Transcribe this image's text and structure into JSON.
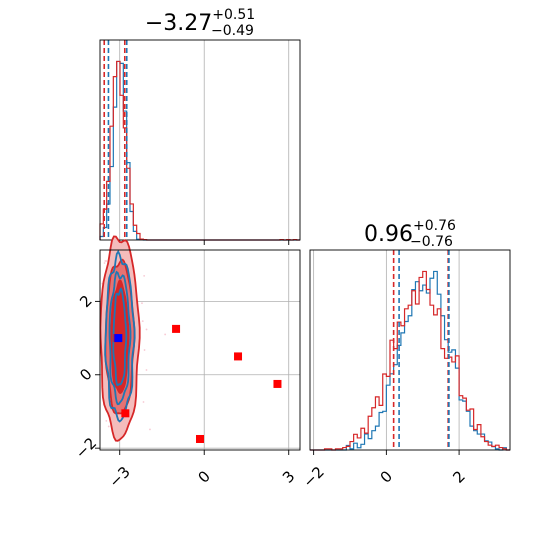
{
  "colors": {
    "blue": "#1f77b4",
    "red": "#d62728",
    "marker_blue": "#0000ff",
    "marker_red": "#ff0000",
    "grid": "#b0b0b0"
  },
  "titles": [
    {
      "base": "−3.27",
      "sup": "+0.51",
      "sub": "−0.49"
    },
    {
      "base": "0.96",
      "sup": "+0.76",
      "sub": "−0.76"
    }
  ],
  "chart_data": {
    "type": "corner",
    "parameters": 2,
    "x_range": [
      -3.7,
      3.4
    ],
    "y_range": [
      -2.05,
      3.4
    ],
    "hist2_range": [
      -2.1,
      3.4
    ],
    "x_ticks": [
      -3,
      0,
      3
    ],
    "x_tick_labels": [
      "−3",
      "0",
      "3"
    ],
    "y_ticks": [
      -2,
      0,
      2
    ],
    "y_tick_labels": [
      "−2",
      "0",
      "2"
    ],
    "hist2_ticks": [
      -2,
      0,
      2
    ],
    "hist2_tick_labels": [
      "−2",
      "0",
      "2"
    ],
    "histograms": [
      {
        "param": 0,
        "blue": {
          "center": -3.0,
          "sigma": 0.22,
          "quantile_lines": [
            -3.4,
            -2.75
          ]
        },
        "red": {
          "center": -3.05,
          "sigma": 0.26,
          "quantile_lines": [
            -3.55,
            -2.82
          ]
        }
      },
      {
        "param": 1,
        "blue": {
          "center": 1.05,
          "sigma": 0.68,
          "quantile_lines": [
            0.35,
            1.72
          ]
        },
        "red": {
          "center": 0.96,
          "sigma": 0.76,
          "quantile_lines": [
            0.2,
            1.7
          ]
        }
      }
    ],
    "contours": {
      "center": [
        -3.0,
        1.0
      ],
      "blue_levels": [
        [
          0.22,
          1.3
        ],
        [
          0.36,
          1.75
        ],
        [
          0.5,
          2.2
        ]
      ],
      "red_levels": [
        [
          0.3,
          1.5
        ],
        [
          0.5,
          2.1
        ],
        [
          0.68,
          2.75
        ]
      ]
    },
    "markers": {
      "blue": [
        [
          -3.05,
          1.0
        ]
      ],
      "red": [
        [
          -3.08,
          1.0
        ],
        [
          -1.0,
          1.25
        ],
        [
          1.2,
          0.5
        ],
        [
          2.6,
          -0.25
        ],
        [
          -2.8,
          -1.05
        ],
        [
          -0.15,
          -1.75
        ]
      ]
    }
  }
}
